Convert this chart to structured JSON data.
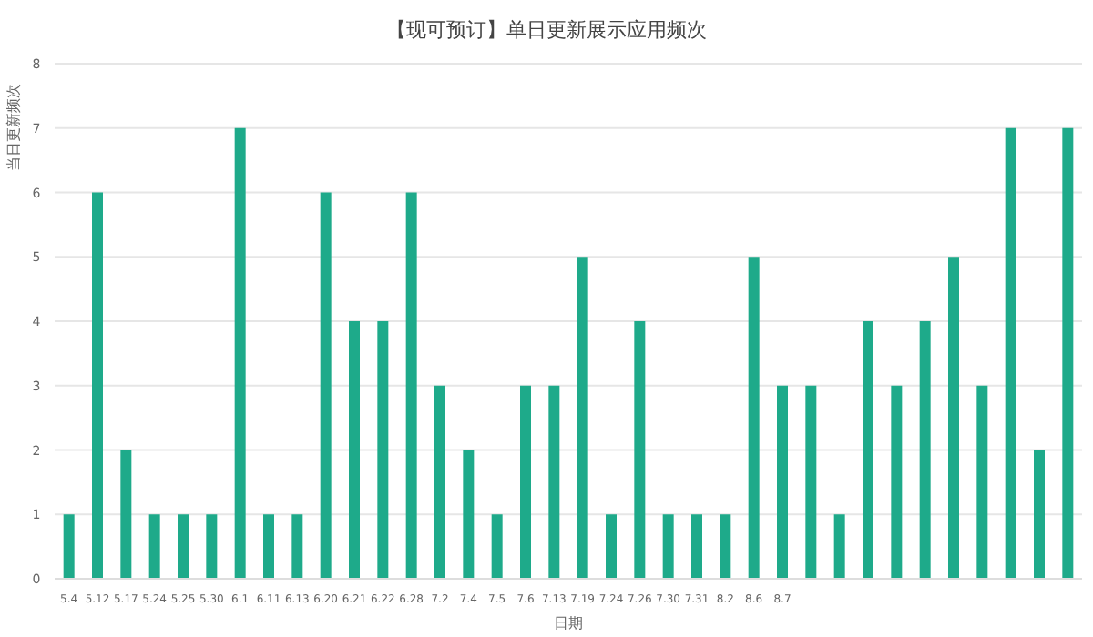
{
  "chart_data": {
    "type": "bar",
    "title": "【现可预订】单日更新展示应用频次",
    "xlabel": "日期",
    "ylabel": "当日更新频次",
    "categories": [
      "5.4",
      "5.12",
      "5.17",
      "5.24",
      "5.25",
      "5.30",
      "6.1",
      "6.11",
      "6.13",
      "6.20",
      "6.21",
      "6.22",
      "6.28",
      "7.2",
      "7.4",
      "7.5",
      "7.6",
      "7.13",
      "7.19",
      "7.24",
      "7.26",
      "7.30",
      "7.31",
      "8.2",
      "8.6",
      "8.7",
      null,
      null,
      null,
      null,
      null,
      null,
      null,
      null,
      null,
      null
    ],
    "values": [
      1,
      6,
      2,
      1,
      1,
      1,
      7,
      1,
      1,
      6,
      4,
      4,
      6,
      3,
      2,
      1,
      3,
      3,
      5,
      1,
      4,
      1,
      1,
      1,
      5,
      3,
      3,
      1,
      4,
      3,
      4,
      5,
      3,
      7,
      2,
      7
    ],
    "color": "#1eaa8a",
    "ylim": [
      0,
      8
    ],
    "yticks": [
      0,
      1,
      2,
      3,
      4,
      5,
      6,
      7,
      8
    ],
    "grid": "y"
  }
}
